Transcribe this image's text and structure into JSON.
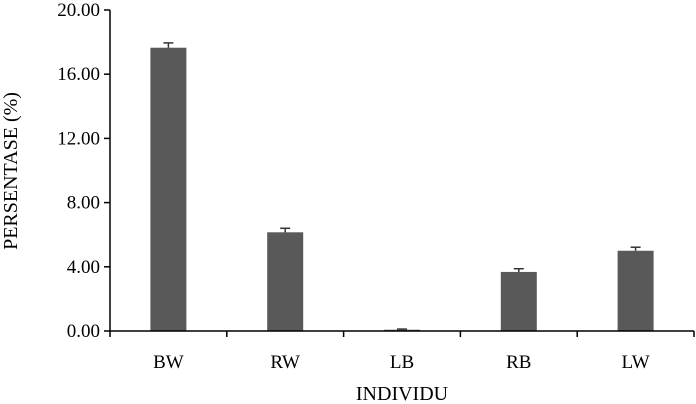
{
  "chart_data": {
    "type": "bar",
    "categories": [
      "BW",
      "RW",
      "LB",
      "RB",
      "LW"
    ],
    "values": [
      17.65,
      6.15,
      0.08,
      3.68,
      5.0
    ],
    "error": [
      0.3,
      0.25,
      0.04,
      0.2,
      0.22
    ],
    "xlabel": "INDIVIDU",
    "ylabel": "PERSENTASE (%)",
    "ylim": [
      0,
      20
    ],
    "yticks": [
      "0.00",
      "4.00",
      "8.00",
      "12.00",
      "16.00",
      "20.00"
    ],
    "grid": false,
    "bar_color": "#595959"
  }
}
